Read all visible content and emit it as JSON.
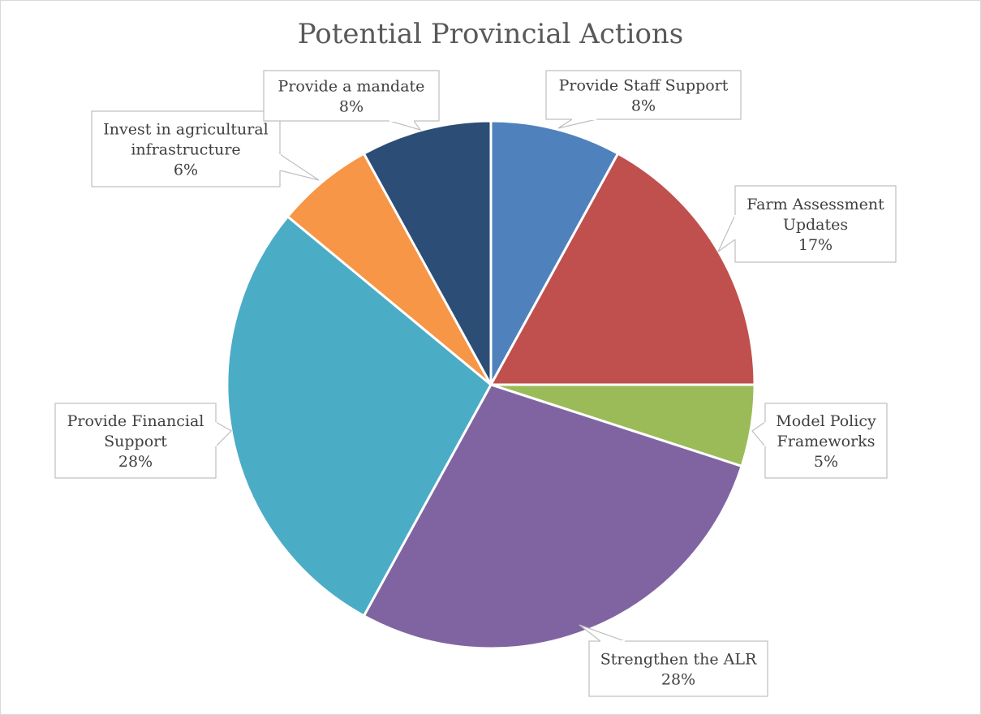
{
  "chart_data": {
    "type": "pie",
    "title": "Potential Provincial Actions",
    "start_angle_deg": 0,
    "direction": "clockwise",
    "slices": [
      {
        "label": "Provide Staff Support",
        "label_lines": [
          "Provide Staff Support"
        ],
        "value": 8,
        "display": "8%",
        "color": "#4f81bd"
      },
      {
        "label": "Farm Assessment Updates",
        "label_lines": [
          "Farm Assessment",
          "Updates"
        ],
        "value": 17,
        "display": "17%",
        "color": "#c0504d"
      },
      {
        "label": "Model Policy Frameworks",
        "label_lines": [
          "Model Policy",
          "Frameworks"
        ],
        "value": 5,
        "display": "5%",
        "color": "#9bbb59"
      },
      {
        "label": "Strengthen the ALR",
        "label_lines": [
          "Strengthen the ALR"
        ],
        "value": 28,
        "display": "28%",
        "color": "#8064a2"
      },
      {
        "label": "Provide Financial Support",
        "label_lines": [
          "Provide Financial",
          "Support"
        ],
        "value": 28,
        "display": "28%",
        "color": "#4bacc6"
      },
      {
        "label": "Invest in agricultural infrastructure",
        "label_lines": [
          "Invest in agricultural",
          "infrastructure"
        ],
        "value": 6,
        "display": "6%",
        "color": "#f79646"
      },
      {
        "label": "Provide a mandate",
        "label_lines": [
          "Provide a mandate"
        ],
        "value": 8,
        "display": "8%",
        "color": "#2c4d75"
      }
    ]
  }
}
